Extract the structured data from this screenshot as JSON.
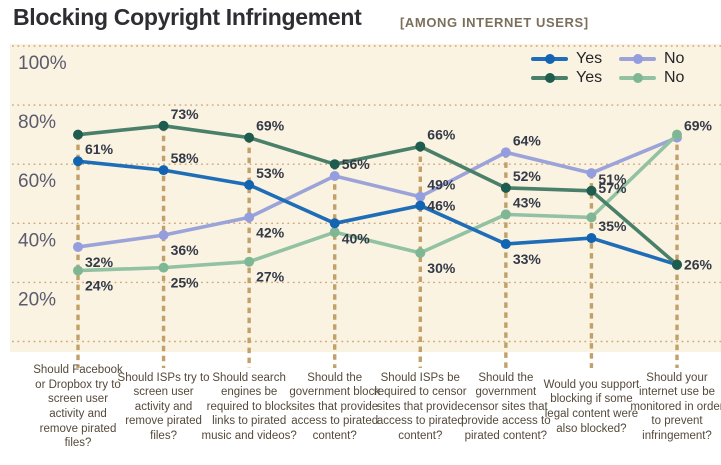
{
  "header": {
    "title": "Blocking Copyright Infringement",
    "subtitle": "[AMONG INTERNET USERS]"
  },
  "chart_data": {
    "type": "line",
    "title": "Blocking Copyright Infringement",
    "subtitle": "[AMONG INTERNET USERS]",
    "xlabel": "",
    "ylabel": "",
    "ylim": [
      0,
      100
    ],
    "ytick_labels": [
      "100%",
      "80%",
      "60%",
      "40%",
      "20%"
    ],
    "grid": "horizontal-dotted",
    "legend_position": "top-right",
    "colors": {
      "background": "#faf3e2",
      "dashed_guides": "#c2a169",
      "gridlines": "#d2a876"
    },
    "categories": [
      "Should Facebook or Dropbox try to screen user activity and remove pirated files?",
      "Should ISPs try to screen user activity and remove pirated files?",
      "Should search engines be required to block links to pirated music and videos?",
      "Should the government block sites that provide access to pirated content?",
      "Should ISPs be required to censor sites that provide access to pirated content?",
      "Should the government censor sites that provide access to pirated content?",
      "Would you support blocking if some legal content were also blocked?",
      "Should your internet use be monitored in order to prevent infringement?"
    ],
    "series": [
      {
        "name": "Yes",
        "color": "#1f6db6",
        "dot_color": "#1263b1",
        "values": [
          61,
          58,
          53,
          40,
          46,
          33,
          35,
          26
        ],
        "labels": [
          "61%",
          "58%",
          "53%",
          "40%",
          "46%",
          "33%",
          "35%",
          "26%"
        ]
      },
      {
        "name": "No",
        "color": "#9ba3d9",
        "dot_color": "#949ede",
        "values": [
          32,
          36,
          42,
          56,
          49,
          64,
          57,
          69
        ],
        "labels": [
          "32%",
          "36%",
          "42%",
          "56%",
          "49%",
          "64%",
          "57%",
          "69%"
        ]
      },
      {
        "name": "Yes",
        "color": "#4a8069",
        "dot_color": "#1d5c4e",
        "values": [
          70,
          73,
          69,
          60,
          66,
          52,
          51,
          26
        ],
        "labels": [
          null,
          "73%",
          "69%",
          null,
          "66%",
          "52%",
          "51%",
          null
        ]
      },
      {
        "name": "No",
        "color": "#92c2a2",
        "dot_color": "#7fb794",
        "values": [
          24,
          25,
          27,
          37,
          30,
          43,
          42,
          70
        ],
        "labels": [
          "24%",
          "25%",
          "27%",
          null,
          "30%",
          "43%",
          null,
          null
        ]
      }
    ]
  }
}
